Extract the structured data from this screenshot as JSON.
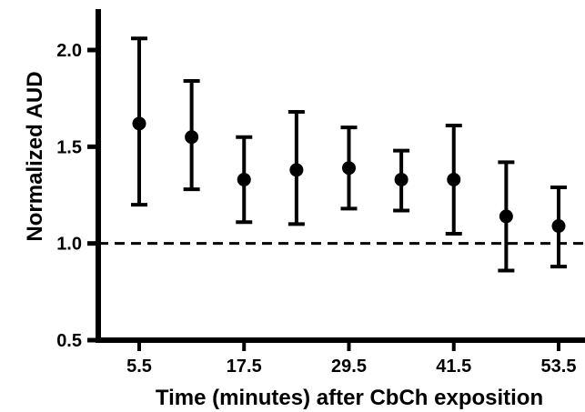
{
  "chart_data": {
    "type": "scatter",
    "title": "",
    "xlabel": "Time (minutes) after CbCh exposition",
    "ylabel": "Normalized AUD",
    "ylim": [
      0.5,
      2.1
    ],
    "xlim": [
      0.5,
      56.5
    ],
    "x_ticks": [
      5.5,
      17.5,
      29.5,
      41.5,
      53.5
    ],
    "x_tick_labels": [
      "5.5",
      "17.5",
      "29.5",
      "41.5",
      "53.5"
    ],
    "y_ticks": [
      0.5,
      1.0,
      1.5,
      2.0
    ],
    "y_tick_labels": [
      "0.5",
      "1.0",
      "1.5",
      "2.0"
    ],
    "reference_line": {
      "y": 1.0,
      "style": "dashed"
    },
    "grid": false,
    "legend": "none",
    "marker_color": "#000000",
    "series": [
      {
        "x": [
          5.5,
          11.5,
          17.5,
          23.5,
          29.5,
          35.5,
          41.5,
          47.5,
          53.5
        ],
        "values": [
          1.62,
          1.55,
          1.33,
          1.38,
          1.39,
          1.33,
          1.33,
          1.14,
          1.09
        ],
        "error_upper": [
          2.06,
          1.84,
          1.55,
          1.68,
          1.6,
          1.48,
          1.61,
          1.42,
          1.29
        ],
        "error_lower": [
          1.2,
          1.28,
          1.11,
          1.1,
          1.18,
          1.17,
          1.05,
          0.86,
          0.88
        ]
      }
    ]
  }
}
